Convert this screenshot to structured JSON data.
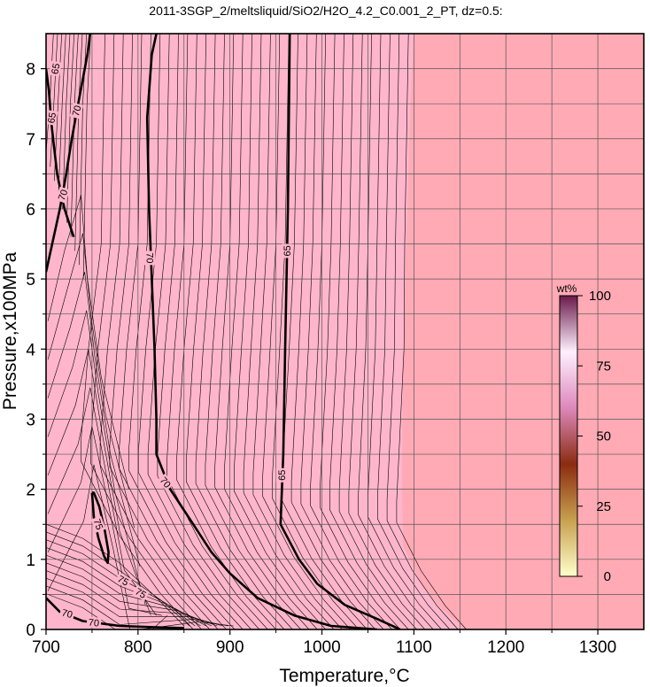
{
  "chart_data": {
    "type": "heatmap",
    "title": "2011-3SGP_2/meltsliquid/SiO2/H2O_4.2_C0.001_2_PT, dz=0.5:",
    "xlabel": "Temperature,°C",
    "ylabel": "Pressure,x100MPa",
    "xlim": [
      700,
      1350
    ],
    "ylim": [
      0,
      8.5
    ],
    "x_ticks": [
      "700",
      "800",
      "900",
      "1000",
      "1100",
      "1200",
      "1300"
    ],
    "y_ticks": [
      "0",
      "1",
      "2",
      "3",
      "4",
      "5",
      "6",
      "7",
      "8"
    ],
    "grid": true,
    "contour_interval": 0.5,
    "field_colors": {
      "high": "#ffb6cc",
      "low": "#ffaab5"
    },
    "colorbar": {
      "unit": "wt%",
      "range": [
        0,
        100
      ],
      "ticks": [
        "0",
        "25",
        "50",
        "75",
        "100"
      ],
      "colors": [
        "#ffffcc",
        "#c8a050",
        "#8b2c10",
        "#dd88bb",
        "#fff0ff",
        "#6a1a4a"
      ]
    },
    "labeled_contours": [
      {
        "level": 65,
        "points": [
          [
            700,
            8.0
          ],
          [
            703,
            7.7
          ],
          [
            706,
            7.2
          ],
          [
            712,
            6.5
          ],
          [
            720,
            6.0
          ],
          [
            730,
            5.6
          ]
        ]
      },
      {
        "level": 70,
        "points": [
          [
            700,
            5.1
          ],
          [
            715,
            6.0
          ],
          [
            722,
            6.5
          ],
          [
            728,
            7.0
          ],
          [
            735,
            7.5
          ],
          [
            745,
            8.2
          ],
          [
            748,
            8.5
          ]
        ]
      },
      {
        "level": 70,
        "points": [
          [
            820,
            8.5
          ],
          [
            815,
            8.2
          ],
          [
            810,
            7.3
          ],
          [
            812,
            6.0
          ],
          [
            815,
            5.0
          ],
          [
            818,
            4.0
          ],
          [
            820,
            3.0
          ],
          [
            820,
            2.5
          ],
          [
            835,
            2.0
          ],
          [
            860,
            1.5
          ],
          [
            880,
            1.1
          ],
          [
            900,
            0.8
          ],
          [
            930,
            0.45
          ],
          [
            970,
            0.2
          ],
          [
            1010,
            0.05
          ],
          [
            1060,
            0.0
          ]
        ]
      },
      {
        "level": 65,
        "points": [
          [
            965,
            8.5
          ],
          [
            963,
            6.0
          ],
          [
            960,
            4.0
          ],
          [
            958,
            2.5
          ],
          [
            955,
            1.5
          ],
          [
            975,
            1.0
          ],
          [
            995,
            0.65
          ],
          [
            1025,
            0.35
          ],
          [
            1060,
            0.15
          ],
          [
            1080,
            0.03
          ],
          [
            1085,
            0.0
          ]
        ]
      },
      {
        "level": 70,
        "points": [
          [
            700,
            0.45
          ],
          [
            715,
            0.25
          ],
          [
            740,
            0.12
          ],
          [
            780,
            0.05
          ],
          [
            820,
            0.03
          ],
          [
            850,
            0.02
          ]
        ]
      },
      {
        "level": 75,
        "points": [
          [
            750,
            1.95
          ],
          [
            752,
            1.6
          ],
          [
            757,
            1.3
          ],
          [
            763,
            1.05
          ],
          [
            767,
            0.95
          ],
          [
            768,
            1.1
          ],
          [
            764,
            1.4
          ],
          [
            758,
            1.75
          ],
          [
            752,
            1.95
          ],
          [
            750,
            1.95
          ]
        ]
      },
      {
        "level": 75,
        "points": [
          [
            780,
            0.75
          ],
          [
            786,
            0.7
          ],
          [
            788,
            0.65
          ],
          [
            784,
            0.68
          ],
          [
            780,
            0.75
          ]
        ]
      },
      {
        "level": 75,
        "points": [
          [
            800,
            0.6
          ],
          [
            806,
            0.55
          ],
          [
            807,
            0.5
          ],
          [
            802,
            0.52
          ],
          [
            800,
            0.6
          ]
        ]
      }
    ],
    "contour_labels": [
      {
        "text": "65",
        "x": 710,
        "y": 8.0,
        "angle": -80
      },
      {
        "text": "65",
        "x": 706,
        "y": 7.3,
        "angle": -80
      },
      {
        "text": "70",
        "x": 733,
        "y": 7.4,
        "angle": -75
      },
      {
        "text": "70",
        "x": 718,
        "y": 6.2,
        "angle": -70
      },
      {
        "text": "70",
        "x": 813,
        "y": 5.3,
        "angle": 90
      },
      {
        "text": "70",
        "x": 830,
        "y": 2.1,
        "angle": 50
      },
      {
        "text": "65",
        "x": 962,
        "y": 5.4,
        "angle": -90
      },
      {
        "text": "65",
        "x": 956,
        "y": 2.2,
        "angle": -90
      },
      {
        "text": "75",
        "x": 757,
        "y": 1.5,
        "angle": 70
      },
      {
        "text": "75",
        "x": 784,
        "y": 0.7,
        "angle": 30
      },
      {
        "text": "75",
        "x": 803,
        "y": 0.52,
        "angle": 30
      },
      {
        "text": "70",
        "x": 723,
        "y": 0.23,
        "angle": 15
      },
      {
        "text": "70",
        "x": 752,
        "y": 0.1,
        "angle": 5
      }
    ]
  }
}
